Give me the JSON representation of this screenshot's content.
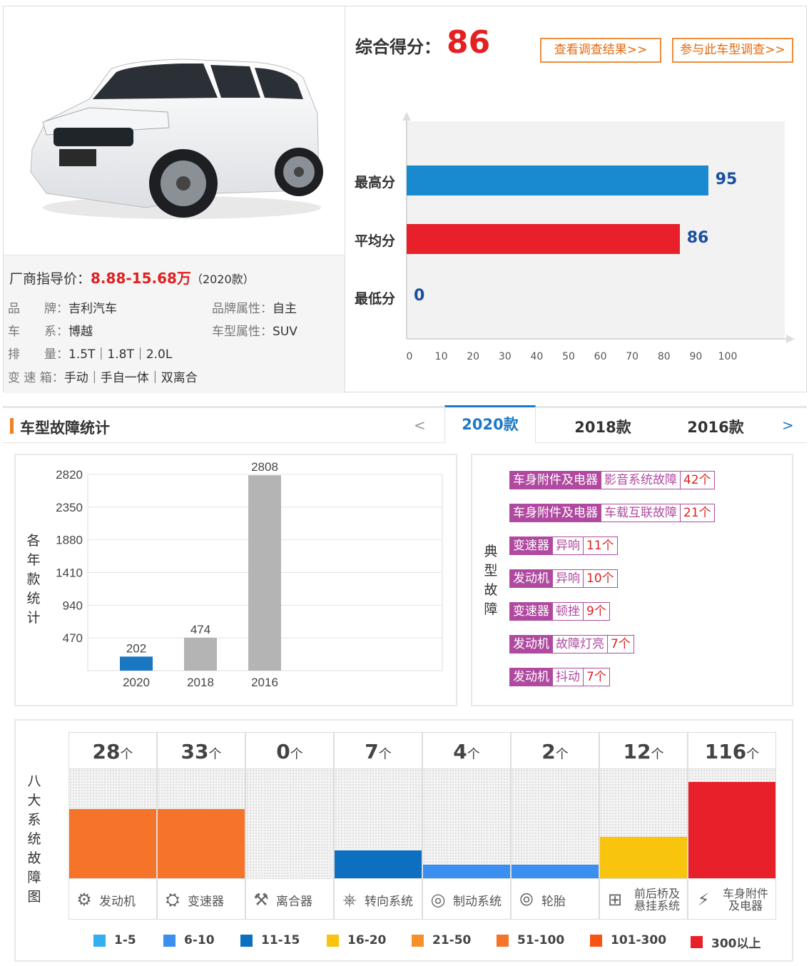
{
  "car": {
    "price_label": "厂商指导价：",
    "price_value": "8.88-15.68万",
    "price_year": "（2020款）",
    "specs": [
      {
        "key": "品　　牌：",
        "value": "吉利汽车"
      },
      {
        "key": "品牌属性：",
        "value": "自主"
      },
      {
        "key": "车　　系：",
        "value": "博越"
      },
      {
        "key": "车型属性：",
        "value": "SUV"
      },
      {
        "key": "排　　量：",
        "value": "1.5T｜1.8T｜2.0L"
      },
      {
        "key": "变 速 箱：",
        "value": "手动｜手自一体｜双离合"
      }
    ]
  },
  "score": {
    "title": "综合得分：",
    "value": "86",
    "btn_results": "查看调查结果>>",
    "btn_survey": "参与此车型调查>>"
  },
  "faults": {
    "title": "车型故障统计",
    "prev": "<",
    "next": ">",
    "tabs": [
      "2020款",
      "2018款",
      "2016款"
    ],
    "year_chart_label": [
      "各",
      "年",
      "款",
      "统",
      "计"
    ],
    "typical_label": [
      "典",
      "型",
      "故",
      "障"
    ],
    "typical": [
      {
        "system": "车身附件及电器",
        "fault": "影音系统故障",
        "count": "42个"
      },
      {
        "system": "车身附件及电器",
        "fault": "车载互联故障",
        "count": "21个"
      },
      {
        "system": "变速器",
        "fault": "异响",
        "count": "11个"
      },
      {
        "system": "发动机",
        "fault": "异响",
        "count": "10个"
      },
      {
        "system": "变速器",
        "fault": "顿挫",
        "count": "9个"
      },
      {
        "system": "发动机",
        "fault": "故障灯亮",
        "count": "7个"
      },
      {
        "system": "发动机",
        "fault": "抖动",
        "count": "7个"
      }
    ],
    "systems_label": [
      "八",
      "大",
      "系",
      "统",
      "故",
      "障",
      "图"
    ]
  },
  "chart_data": [
    {
      "type": "bar",
      "orientation": "horizontal",
      "categories": [
        "最高分",
        "平均分",
        "最低分"
      ],
      "values": [
        95,
        86,
        0
      ],
      "colors": [
        "#1a8ad0",
        "#e8202a",
        "#999999"
      ],
      "xticks": [
        0,
        10,
        20,
        30,
        40,
        50,
        60,
        70,
        80,
        90,
        100
      ],
      "xlim": [
        0,
        120
      ]
    },
    {
      "type": "bar",
      "categories": [
        "2020",
        "2018",
        "2016"
      ],
      "values": [
        202,
        474,
        2808
      ],
      "colors": [
        "#1a78c2",
        "#b4b4b4",
        "#b4b4b4"
      ],
      "yticks": [
        470,
        940,
        1410,
        1880,
        2350,
        2820
      ],
      "ylim": [
        0,
        2820
      ]
    },
    {
      "type": "bar",
      "categories": [
        "发动机",
        "变速器",
        "离合器",
        "转向系统",
        "制动系统",
        "轮胎",
        "前后桥及悬挂系统",
        "车身附件及电器"
      ],
      "values": [
        28,
        33,
        0,
        7,
        4,
        2,
        12,
        116
      ],
      "value_labels": [
        "28",
        "33",
        "0",
        "7",
        "4",
        "2",
        "12",
        "116"
      ],
      "unit": "个",
      "level": [
        5,
        5,
        0,
        2,
        1,
        1,
        3,
        7
      ],
      "legend": [
        {
          "label": "1-5",
          "color": "#35aef0"
        },
        {
          "label": "6-10",
          "color": "#3a8ff0"
        },
        {
          "label": "11-15",
          "color": "#0c6fc0"
        },
        {
          "label": "16-20",
          "color": "#f8c40e"
        },
        {
          "label": "21-50",
          "color": "#f5902a"
        },
        {
          "label": "51-100",
          "color": "#f5742a"
        },
        {
          "label": "101-300",
          "color": "#fa5214"
        },
        {
          "label": "300以上",
          "color": "#e8202a"
        }
      ]
    }
  ]
}
